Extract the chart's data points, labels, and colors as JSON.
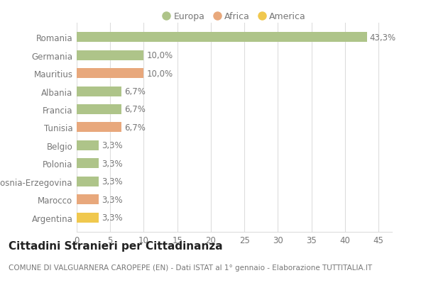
{
  "categories": [
    "Romania",
    "Germania",
    "Mauritius",
    "Albania",
    "Francia",
    "Tunisia",
    "Belgio",
    "Polonia",
    "Bosnia-Erzegovina",
    "Marocco",
    "Argentina"
  ],
  "values": [
    43.3,
    10.0,
    10.0,
    6.7,
    6.7,
    6.7,
    3.3,
    3.3,
    3.3,
    3.3,
    3.3
  ],
  "labels": [
    "43,3%",
    "10,0%",
    "10,0%",
    "6,7%",
    "6,7%",
    "6,7%",
    "3,3%",
    "3,3%",
    "3,3%",
    "3,3%",
    "3,3%"
  ],
  "continents": [
    "Europa",
    "Europa",
    "Africa",
    "Europa",
    "Europa",
    "Africa",
    "Europa",
    "Europa",
    "Europa",
    "Africa",
    "America"
  ],
  "colors": {
    "Europa": "#aec489",
    "Africa": "#e8a87c",
    "America": "#f0c84e"
  },
  "legend_order": [
    "Europa",
    "Africa",
    "America"
  ],
  "title": "Cittadini Stranieri per Cittadinanza",
  "subtitle": "COMUNE DI VALGUARNERA CAROPEPE (EN) - Dati ISTAT al 1° gennaio - Elaborazione TUTTITALIA.IT",
  "xlim": [
    0,
    47
  ],
  "xticks": [
    0,
    5,
    10,
    15,
    20,
    25,
    30,
    35,
    40,
    45
  ],
  "background_color": "#ffffff",
  "grid_color": "#dddddd",
  "bar_height": 0.55,
  "title_fontsize": 11,
  "subtitle_fontsize": 7.5,
  "label_fontsize": 8.5,
  "tick_fontsize": 8.5,
  "legend_fontsize": 9
}
